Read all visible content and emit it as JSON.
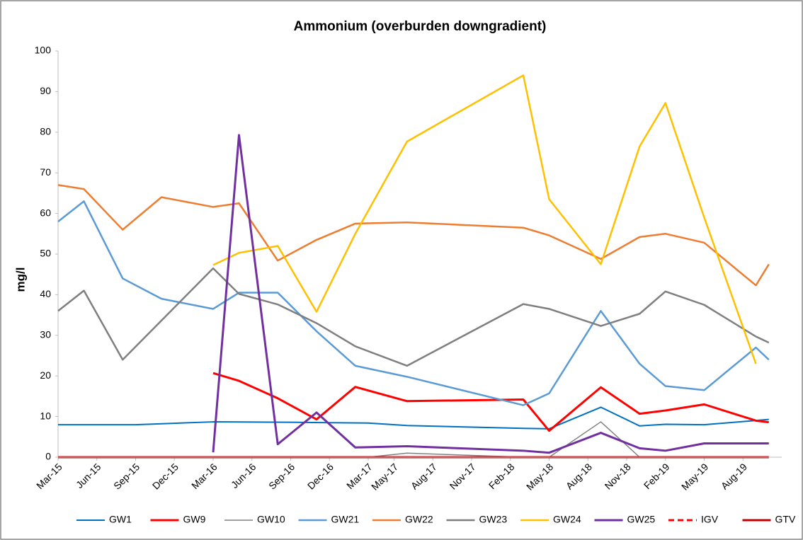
{
  "chart_data": {
    "type": "line",
    "title": "Ammonium (overburden downgradient)",
    "y_label": "mg/l",
    "xlim": [
      "2015-03",
      "2019-11"
    ],
    "xticks": [
      {
        "value": "2015-03",
        "label": "Mar-15"
      },
      {
        "value": "2015-06",
        "label": "Jun-15"
      },
      {
        "value": "2015-09",
        "label": "Sep-15"
      },
      {
        "value": "2015-12",
        "label": "Dec-15"
      },
      {
        "value": "2016-03",
        "label": "Mar-16"
      },
      {
        "value": "2016-06",
        "label": "Jun-16"
      },
      {
        "value": "2016-09",
        "label": "Sep-16"
      },
      {
        "value": "2016-12",
        "label": "Dec-16"
      },
      {
        "value": "2017-03",
        "label": "Mar-17"
      },
      {
        "value": "2017-05",
        "label": "May-17"
      },
      {
        "value": "2017-08",
        "label": "Aug-17"
      },
      {
        "value": "2017-11",
        "label": "Nov-17"
      },
      {
        "value": "2018-02",
        "label": "Feb-18"
      },
      {
        "value": "2018-05",
        "label": "May-18"
      },
      {
        "value": "2018-08",
        "label": "Aug-18"
      },
      {
        "value": "2018-11",
        "label": "Nov-18"
      },
      {
        "value": "2019-02",
        "label": "Feb-19"
      },
      {
        "value": "2019-05",
        "label": "May-19"
      },
      {
        "value": "2019-08",
        "label": "Aug-19"
      }
    ],
    "ylim": [
      0,
      100
    ],
    "yticks": [
      0,
      10,
      20,
      30,
      40,
      50,
      60,
      70,
      80,
      90,
      100
    ],
    "grid": false,
    "legend": "bottom",
    "series": [
      {
        "name": "GW1",
        "color": "#0070c0",
        "width": 2,
        "x": [
          "2015-03",
          "2015-09",
          "2016-03",
          "2016-09",
          "2016-12",
          "2017-03",
          "2017-06",
          "2018-03",
          "2018-05",
          "2018-09",
          "2018-12",
          "2019-02",
          "2019-05",
          "2019-10"
        ],
        "values": [
          8,
          8,
          8.7,
          8.6,
          8.5,
          8.4,
          7.8,
          7.1,
          7,
          12.3,
          7.7,
          8.1,
          8,
          9.3
        ]
      },
      {
        "name": "GW9",
        "color": "#ff0000",
        "width": 3,
        "x": [
          "2016-03",
          "2016-05",
          "2016-08",
          "2016-11",
          "2017-02",
          "2017-06",
          "2018-03",
          "2018-05",
          "2018-09",
          "2018-12",
          "2019-02",
          "2019-05",
          "2019-09",
          "2019-10"
        ],
        "values": [
          20.7,
          18.8,
          14.5,
          9.3,
          17.3,
          13.8,
          14.2,
          6.5,
          17.2,
          10.7,
          11.5,
          13,
          9,
          8.6
        ]
      },
      {
        "name": "GW10",
        "color": "#808080",
        "width": 1.5,
        "x": [
          "2017-03",
          "2017-06",
          "2018-03",
          "2018-05",
          "2018-09",
          "2018-12"
        ],
        "values": [
          0,
          1,
          0,
          0,
          8.7,
          0
        ]
      },
      {
        "name": "GW21",
        "color": "#5b9bd5",
        "width": 2.5,
        "x": [
          "2015-03",
          "2015-05",
          "2015-08",
          "2015-11",
          "2016-03",
          "2016-05",
          "2016-08",
          "2016-11",
          "2017-02",
          "2017-06",
          "2018-03",
          "2018-05",
          "2018-09",
          "2018-12",
          "2019-02",
          "2019-05",
          "2019-09",
          "2019-10"
        ],
        "values": [
          58,
          63,
          44,
          39,
          36.5,
          40.5,
          40.5,
          31,
          22.5,
          19.8,
          12.8,
          15.7,
          36,
          23,
          17.5,
          16.5,
          27,
          24
        ]
      },
      {
        "name": "GW22",
        "color": "#ed7d31",
        "width": 2.5,
        "x": [
          "2015-03",
          "2015-05",
          "2015-08",
          "2015-11",
          "2016-03",
          "2016-05",
          "2016-08",
          "2016-11",
          "2017-02",
          "2017-06",
          "2018-03",
          "2018-05",
          "2018-09",
          "2018-12",
          "2019-02",
          "2019-05",
          "2019-09",
          "2019-10"
        ],
        "values": [
          67,
          66,
          56,
          64,
          61.6,
          62.5,
          48.4,
          53.5,
          57.5,
          57.8,
          56.5,
          54.6,
          48.8,
          54.2,
          55,
          52.8,
          42.3,
          47.5
        ]
      },
      {
        "name": "GW23",
        "color": "#7f7f7f",
        "width": 2.5,
        "x": [
          "2015-03",
          "2015-05",
          "2015-08",
          "2016-03",
          "2016-05",
          "2016-08",
          "2016-11",
          "2017-02",
          "2017-06",
          "2018-03",
          "2018-05",
          "2018-09",
          "2018-12",
          "2019-02",
          "2019-05",
          "2019-09",
          "2019-10"
        ],
        "values": [
          36,
          41,
          24,
          46.5,
          40.2,
          37.6,
          33,
          27.3,
          22.5,
          37.7,
          36.5,
          32.3,
          35.3,
          40.8,
          37.5,
          29.7,
          28.2
        ]
      },
      {
        "name": "GW24",
        "color": "#ffc000",
        "width": 2.5,
        "x": [
          "2016-03",
          "2016-05",
          "2016-08",
          "2016-11",
          "2017-02",
          "2017-06",
          "2018-03",
          "2018-05",
          "2018-09",
          "2018-12",
          "2019-02",
          "2019-05",
          "2019-09"
        ],
        "values": [
          47.3,
          50.3,
          52,
          35.8,
          55,
          77.7,
          94,
          63.5,
          47.5,
          76.5,
          87.2,
          59,
          23
        ]
      },
      {
        "name": "GW25",
        "color": "#7030a0",
        "width": 3,
        "x": [
          "2016-03",
          "2016-05",
          "2016-08",
          "2016-11",
          "2017-02",
          "2017-06",
          "2018-03",
          "2018-05",
          "2018-09",
          "2018-12",
          "2019-02",
          "2019-05",
          "2019-10"
        ],
        "values": [
          1.2,
          79.3,
          3.2,
          11,
          2.4,
          2.7,
          1.6,
          1.1,
          6,
          2.2,
          1.6,
          3.4,
          3.4
        ]
      },
      {
        "name": "IGV",
        "color": "#ff0000",
        "width": 3,
        "dash": true,
        "x": [
          "2015-03",
          "2019-10"
        ],
        "values": [
          0,
          0
        ]
      },
      {
        "name": "GTV",
        "color": "#c00000",
        "width": 3,
        "x": [
          "2015-03",
          "2019-10"
        ],
        "values": [
          0,
          0
        ]
      }
    ]
  }
}
